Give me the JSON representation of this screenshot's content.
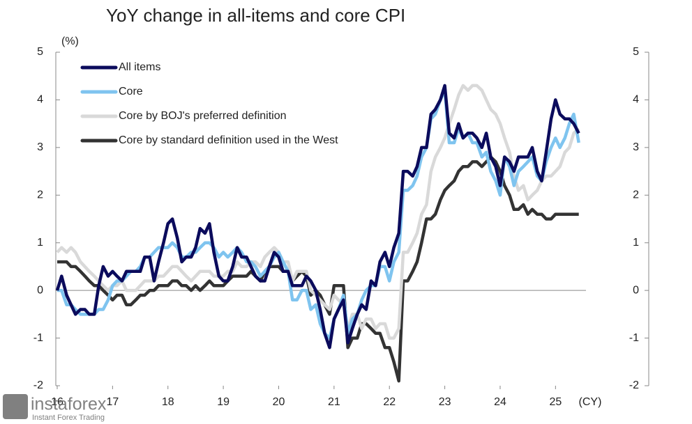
{
  "chart_data": {
    "type": "line",
    "title": "YoY change in all-items and core CPI",
    "y_unit_label": "(%)",
    "x_axis_label": "(CY)",
    "watermark": {
      "brand": "instaforex",
      "tagline": "Instant Forex Trading"
    },
    "legend": "upper left",
    "xlim": [
      16,
      25.55
    ],
    "xticks": [
      16,
      17,
      18,
      19,
      20,
      21,
      22,
      23,
      24,
      25
    ],
    "ylim": [
      -2,
      5
    ],
    "yticks": [
      -2,
      -1,
      0,
      1,
      2,
      3,
      4,
      5
    ],
    "y2lim": [
      -2,
      5
    ],
    "y2ticks": [
      -2,
      -1,
      0,
      1,
      2,
      3,
      4,
      5
    ],
    "x": [
      16,
      16.08,
      16.17,
      16.25,
      16.33,
      16.42,
      16.5,
      16.58,
      16.67,
      16.75,
      16.83,
      16.92,
      17,
      17.08,
      17.17,
      17.25,
      17.33,
      17.42,
      17.5,
      17.58,
      17.67,
      17.75,
      17.83,
      17.92,
      18,
      18.08,
      18.17,
      18.25,
      18.33,
      18.42,
      18.5,
      18.58,
      18.67,
      18.75,
      18.83,
      18.92,
      19,
      19.08,
      19.17,
      19.25,
      19.33,
      19.42,
      19.5,
      19.58,
      19.67,
      19.75,
      19.83,
      19.92,
      20,
      20.08,
      20.17,
      20.25,
      20.33,
      20.42,
      20.5,
      20.58,
      20.67,
      20.75,
      20.83,
      20.92,
      21,
      21.08,
      21.17,
      21.25,
      21.33,
      21.42,
      21.5,
      21.58,
      21.67,
      21.75,
      21.83,
      21.92,
      22,
      22.08,
      22.17,
      22.25,
      22.33,
      22.42,
      22.5,
      22.58,
      22.67,
      22.75,
      22.83,
      22.92,
      23,
      23.08,
      23.17,
      23.25,
      23.33,
      23.42,
      23.5,
      23.58,
      23.67,
      23.75,
      23.83,
      23.92,
      24,
      24.08,
      24.17,
      24.25,
      24.33,
      24.42,
      24.5,
      24.58,
      24.67,
      24.75,
      24.83,
      24.92,
      25,
      25.08,
      25.17,
      25.25,
      25.33,
      25.42
    ],
    "series": [
      {
        "name": "All items",
        "color": "#0b0b5c",
        "values": [
          0.0,
          0.3,
          -0.1,
          -0.3,
          -0.5,
          -0.4,
          -0.4,
          -0.5,
          -0.5,
          0.1,
          0.5,
          0.3,
          0.4,
          0.3,
          0.2,
          0.4,
          0.4,
          0.4,
          0.4,
          0.7,
          0.7,
          0.2,
          0.6,
          1.0,
          1.4,
          1.5,
          1.1,
          0.6,
          0.7,
          0.7,
          0.9,
          1.3,
          1.2,
          1.4,
          0.8,
          0.3,
          0.2,
          0.2,
          0.5,
          0.9,
          0.7,
          0.7,
          0.5,
          0.3,
          0.2,
          0.2,
          0.5,
          0.8,
          0.7,
          0.4,
          0.4,
          0.1,
          0.1,
          0.1,
          0.3,
          0.2,
          0.0,
          -0.4,
          -0.9,
          -1.2,
          -0.6,
          -0.4,
          -0.2,
          -1.1,
          -0.8,
          -0.5,
          -0.3,
          -0.4,
          0.2,
          0.1,
          0.6,
          0.8,
          0.5,
          0.9,
          1.2,
          2.5,
          2.5,
          2.4,
          2.6,
          3.0,
          3.0,
          3.7,
          3.8,
          4.0,
          4.3,
          3.3,
          3.2,
          3.5,
          3.2,
          3.3,
          3.3,
          3.2,
          3.0,
          3.3,
          2.8,
          2.6,
          2.2,
          2.8,
          2.7,
          2.5,
          2.8,
          2.8,
          2.8,
          3.0,
          2.5,
          2.3,
          2.9,
          3.6,
          4.0,
          3.7,
          3.6,
          3.6,
          3.5,
          3.3
        ]
      },
      {
        "name": "Core",
        "color": "#7fc4ef",
        "values": [
          0.0,
          0.0,
          -0.3,
          -0.3,
          -0.4,
          -0.5,
          -0.5,
          -0.5,
          -0.5,
          -0.4,
          -0.4,
          -0.2,
          0.1,
          0.2,
          0.2,
          0.3,
          0.4,
          0.4,
          0.5,
          0.7,
          0.7,
          0.8,
          0.9,
          0.9,
          0.9,
          1.0,
          0.9,
          0.7,
          0.7,
          0.8,
          0.8,
          0.9,
          1.0,
          1.0,
          0.9,
          0.7,
          0.8,
          0.7,
          0.8,
          0.9,
          0.8,
          0.6,
          0.6,
          0.5,
          0.3,
          0.4,
          0.5,
          0.7,
          0.8,
          0.6,
          0.4,
          -0.2,
          -0.2,
          0.0,
          0.0,
          -0.4,
          -0.3,
          -0.7,
          -0.9,
          -1.0,
          -0.6,
          -0.4,
          -0.1,
          -0.9,
          -0.6,
          -0.5,
          -0.2,
          0.0,
          0.1,
          0.1,
          0.5,
          0.5,
          0.2,
          0.6,
          0.8,
          2.1,
          2.1,
          2.2,
          2.4,
          2.8,
          3.0,
          3.6,
          3.7,
          4.0,
          4.2,
          3.1,
          3.1,
          3.4,
          3.2,
          3.3,
          3.1,
          3.1,
          2.8,
          2.9,
          2.5,
          2.3,
          2.0,
          2.8,
          2.6,
          2.2,
          2.5,
          2.6,
          2.7,
          2.8,
          2.4,
          2.3,
          2.7,
          3.0,
          3.2,
          3.0,
          3.2,
          3.5,
          3.7,
          3.1
        ]
      },
      {
        "name": "Core by BOJ's preferred definition",
        "color": "#d9d9d9",
        "values": [
          0.8,
          0.9,
          0.8,
          0.9,
          0.8,
          0.6,
          0.5,
          0.4,
          0.3,
          0.2,
          0.1,
          0.0,
          0.1,
          0.1,
          0.2,
          0.0,
          0.0,
          0.0,
          0.1,
          0.2,
          0.2,
          0.2,
          0.3,
          0.3,
          0.4,
          0.5,
          0.5,
          0.4,
          0.3,
          0.2,
          0.3,
          0.4,
          0.4,
          0.4,
          0.3,
          0.3,
          0.3,
          0.4,
          0.4,
          0.6,
          0.5,
          0.5,
          0.6,
          0.6,
          0.5,
          0.7,
          0.8,
          0.9,
          0.8,
          0.6,
          0.6,
          0.2,
          0.4,
          0.4,
          0.4,
          0.0,
          -0.1,
          -0.2,
          -0.3,
          -0.4,
          -0.1,
          -0.2,
          -0.3,
          -0.8,
          -0.5,
          -0.5,
          -0.8,
          -0.6,
          -0.6,
          -0.8,
          -0.7,
          -0.7,
          -1.0,
          -1.0,
          -0.8,
          0.8,
          0.8,
          1.0,
          1.2,
          1.6,
          1.8,
          2.5,
          2.8,
          3.0,
          3.2,
          3.5,
          3.8,
          4.1,
          4.3,
          4.2,
          4.3,
          4.3,
          4.2,
          4.0,
          3.8,
          3.7,
          3.5,
          3.2,
          2.9,
          2.4,
          2.1,
          2.2,
          1.9,
          2.0,
          2.1,
          2.3,
          2.4,
          2.4,
          2.5,
          2.6,
          2.9,
          3.0,
          3.3,
          3.4
        ]
      },
      {
        "name": "Core by standard definition used in the West",
        "color": "#333333",
        "values": [
          0.6,
          0.6,
          0.6,
          0.5,
          0.5,
          0.4,
          0.3,
          0.2,
          0.1,
          0.1,
          0.0,
          -0.1,
          -0.2,
          -0.1,
          -0.1,
          -0.3,
          -0.3,
          -0.2,
          -0.1,
          -0.1,
          0.0,
          0.0,
          0.1,
          0.1,
          0.1,
          0.2,
          0.2,
          0.1,
          0.1,
          0.0,
          0.1,
          0.0,
          0.1,
          0.2,
          0.1,
          0.1,
          0.1,
          0.2,
          0.3,
          0.3,
          0.3,
          0.3,
          0.4,
          0.3,
          0.2,
          0.4,
          0.5,
          0.5,
          0.5,
          0.4,
          0.4,
          0.2,
          0.3,
          0.4,
          0.3,
          -0.1,
          0.0,
          -0.1,
          -0.3,
          -0.5,
          0.1,
          0.1,
          0.1,
          -1.2,
          -1.0,
          -1.0,
          -0.7,
          -0.7,
          -0.8,
          -0.9,
          -0.9,
          -1.2,
          -1.2,
          -1.5,
          -1.9,
          0.2,
          0.2,
          0.4,
          0.6,
          1.0,
          1.5,
          1.5,
          1.6,
          1.9,
          2.1,
          2.2,
          2.3,
          2.5,
          2.6,
          2.6,
          2.7,
          2.7,
          2.6,
          2.7,
          2.8,
          2.7,
          2.5,
          2.2,
          2.0,
          1.7,
          1.7,
          1.8,
          1.6,
          1.7,
          1.6,
          1.6,
          1.5,
          1.5,
          1.6,
          1.6,
          1.6,
          1.6,
          1.6,
          1.6
        ]
      }
    ]
  }
}
